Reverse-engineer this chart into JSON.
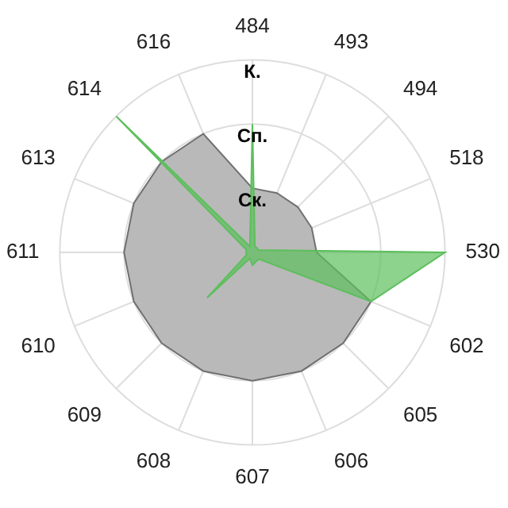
{
  "chart_data": {
    "type": "radar",
    "categories": [
      "484",
      "493",
      "494",
      "518",
      "530",
      "602",
      "605",
      "606",
      "607",
      "608",
      "609",
      "610",
      "611",
      "613",
      "614",
      "616"
    ],
    "ylim": [
      0,
      3
    ],
    "yticks": [
      {
        "value": 1,
        "label": "Ск."
      },
      {
        "value": 2,
        "label": "Сп."
      },
      {
        "value": 3,
        "label": "К."
      }
    ],
    "grid": true,
    "legend": false,
    "series": [
      {
        "color": "#b9b9b9",
        "values": [
          1.0,
          1.0,
          1.0,
          1.0,
          1.0,
          2.0,
          2.0,
          2.0,
          2.0,
          2.0,
          2.0,
          2.0,
          2.0,
          2.0,
          2.0,
          2.0
        ]
      },
      {
        "color": "#5cbf5c",
        "values": [
          2.0,
          0.1,
          0.1,
          0.1,
          3.0,
          2.0,
          0.15,
          0.15,
          0.2,
          0.1,
          1.0,
          0.1,
          0.1,
          0.1,
          3.0,
          0.1
        ]
      }
    ]
  }
}
